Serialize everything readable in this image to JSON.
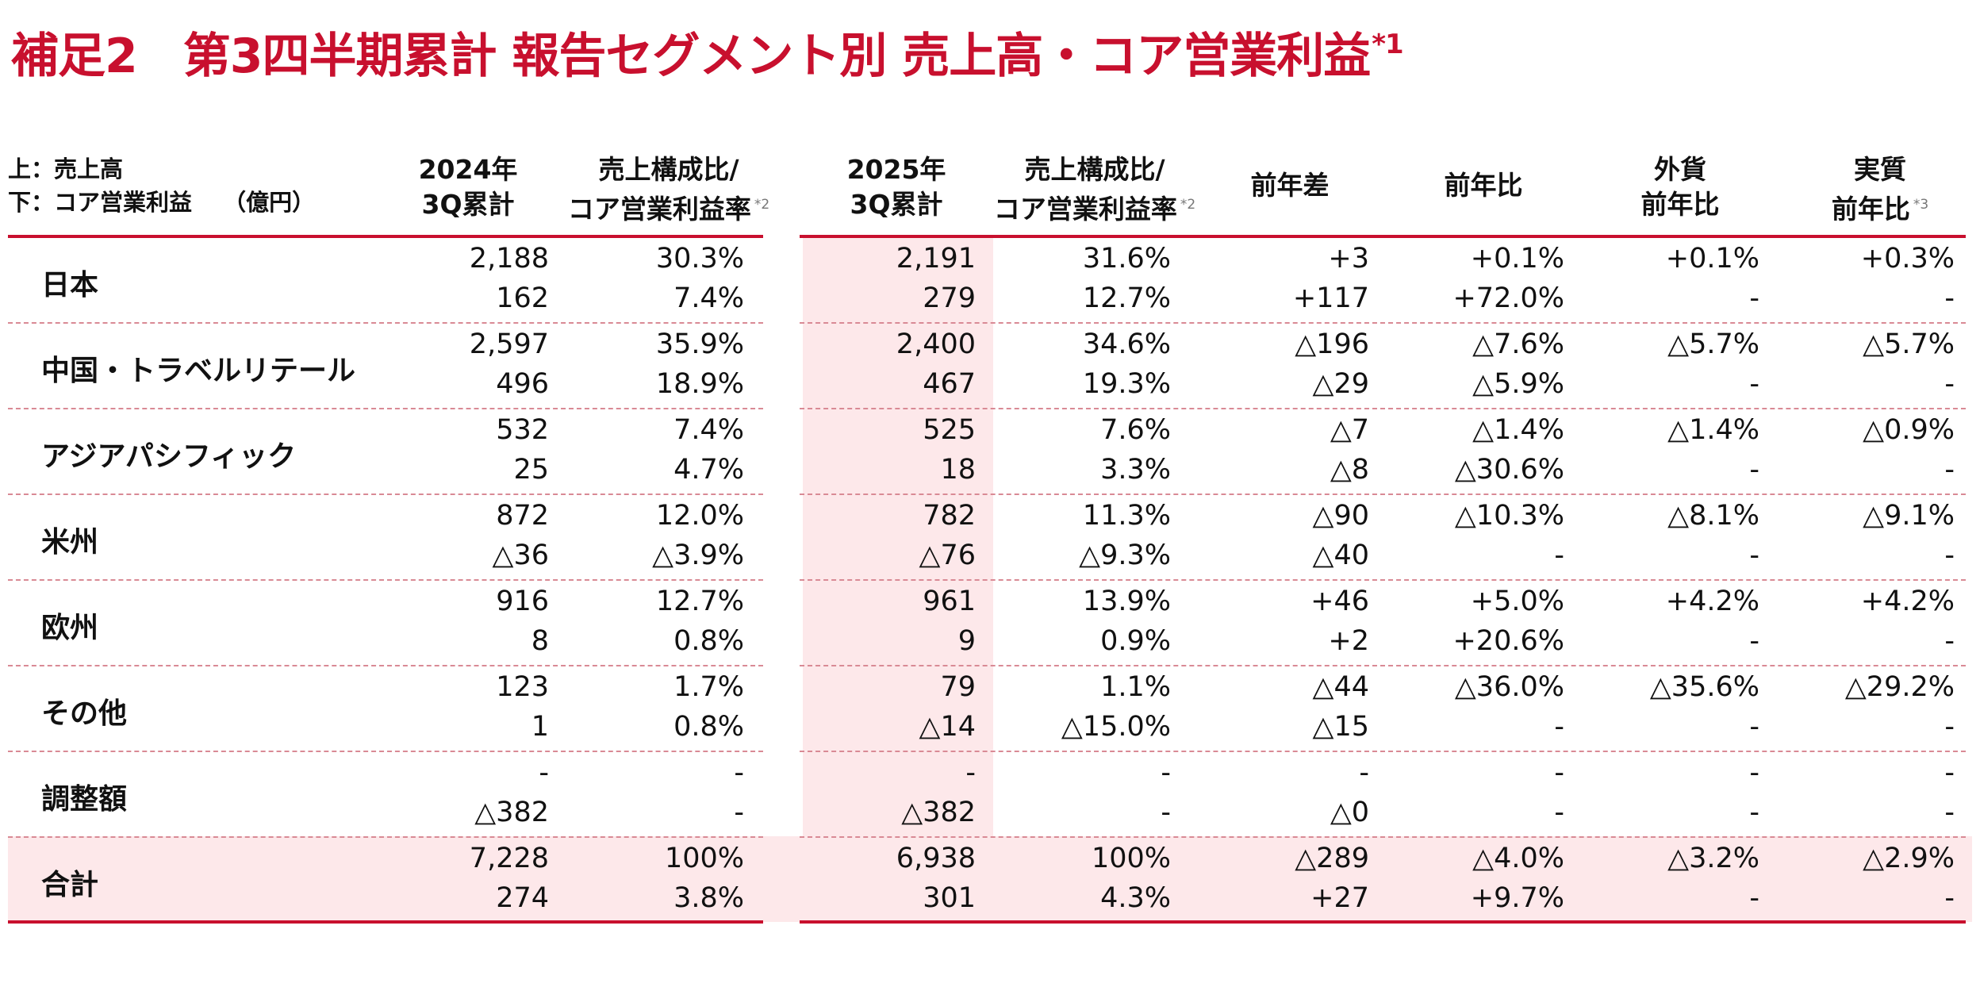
{
  "title": {
    "prefix": "補足2",
    "main": "第3四半期累計 報告セグメント別 売上高・コア営業利益",
    "note": "*1"
  },
  "legend": {
    "line1": "上：売上高",
    "line2": "下：コア営業利益　  （億円）"
  },
  "headers": [
    {
      "l1": "2024年",
      "l2": "3Q累計",
      "note": ""
    },
    {
      "l1": "売上構成比/",
      "l2": "コア営業利益率",
      "note": "*2"
    },
    {
      "l1": "2025年",
      "l2": "3Q累計",
      "note": ""
    },
    {
      "l1": "売上構成比/",
      "l2": "コア営業利益率",
      "note": "*2"
    },
    {
      "l1": "前年差",
      "l2": "",
      "note": ""
    },
    {
      "l1": "前年比",
      "l2": "",
      "note": ""
    },
    {
      "l1": "外貨",
      "l2": "前年比",
      "note": ""
    },
    {
      "l1": "実質",
      "l2": "前年比",
      "note": "*3"
    }
  ],
  "rows": [
    {
      "segment": "日本",
      "sales": [
        "2,188",
        "30.3%",
        "2,191",
        "31.6%",
        "+3",
        "+0.1%",
        "+0.1%",
        "+0.3%"
      ],
      "op": [
        "162",
        "7.4%",
        "279",
        "12.7%",
        "+117",
        "+72.0%",
        "-",
        "-"
      ]
    },
    {
      "segment": "中国・トラベルリテール",
      "sales": [
        "2,597",
        "35.9%",
        "2,400",
        "34.6%",
        "△196",
        "△7.6%",
        "△5.7%",
        "△5.7%"
      ],
      "op": [
        "496",
        "18.9%",
        "467",
        "19.3%",
        "△29",
        "△5.9%",
        "-",
        "-"
      ]
    },
    {
      "segment": "アジアパシフィック",
      "sales": [
        "532",
        "7.4%",
        "525",
        "7.6%",
        "△7",
        "△1.4%",
        "△1.4%",
        "△0.9%"
      ],
      "op": [
        "25",
        "4.7%",
        "18",
        "3.3%",
        "△8",
        "△30.6%",
        "-",
        "-"
      ]
    },
    {
      "segment": "米州",
      "sales": [
        "872",
        "12.0%",
        "782",
        "11.3%",
        "△90",
        "△10.3%",
        "△8.1%",
        "△9.1%"
      ],
      "op": [
        "△36",
        "△3.9%",
        "△76",
        "△9.3%",
        "△40",
        "-",
        "-",
        "-"
      ]
    },
    {
      "segment": "欧州",
      "sales": [
        "916",
        "12.7%",
        "961",
        "13.9%",
        "+46",
        "+5.0%",
        "+4.2%",
        "+4.2%"
      ],
      "op": [
        "8",
        "0.8%",
        "9",
        "0.9%",
        "+2",
        "+20.6%",
        "-",
        "-"
      ]
    },
    {
      "segment": "その他",
      "sales": [
        "123",
        "1.7%",
        "79",
        "1.1%",
        "△44",
        "△36.0%",
        "△35.6%",
        "△29.2%"
      ],
      "op": [
        "1",
        "0.8%",
        "△14",
        "△15.0%",
        "△15",
        "-",
        "-",
        "-"
      ]
    },
    {
      "segment": "調整額",
      "sales": [
        "-",
        "-",
        "-",
        "-",
        "-",
        "-",
        "-",
        "-"
      ],
      "op": [
        "△382",
        "-",
        "△382",
        "-",
        "△0",
        "-",
        "-",
        "-"
      ]
    },
    {
      "segment": "合計",
      "sales": [
        "7,228",
        "100%",
        "6,938",
        "100%",
        "△289",
        "△4.0%",
        "△3.2%",
        "△2.9%"
      ],
      "op": [
        "274",
        "3.8%",
        "301",
        "4.3%",
        "+27",
        "+9.7%",
        "-",
        "-"
      ]
    }
  ],
  "colors": {
    "accent": "#c8102e",
    "highlight": "#fde8ea",
    "divider": "#d98a95"
  }
}
